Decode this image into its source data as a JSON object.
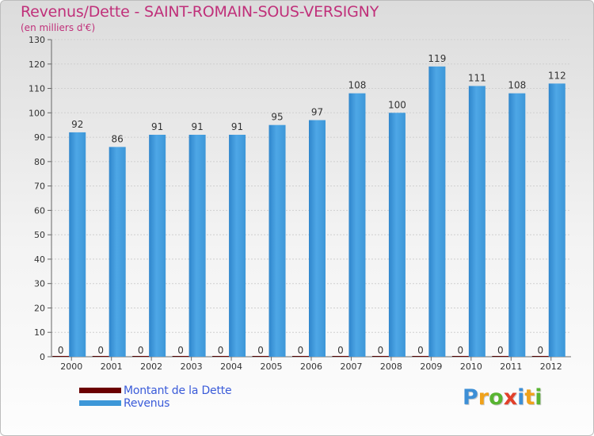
{
  "chart_data": {
    "type": "bar",
    "title": "Revenus/Dette - SAINT-ROMAIN-SOUS-VERSIGNY",
    "subtitle": "(en milliers d'€)",
    "categories": [
      "2000",
      "2001",
      "2002",
      "2003",
      "2004",
      "2005",
      "2006",
      "2007",
      "2008",
      "2009",
      "2010",
      "2011",
      "2012"
    ],
    "series": [
      {
        "name": "Montant de la Dette",
        "color": "#6b0000",
        "values": [
          0,
          0,
          0,
          0,
          0,
          0,
          0,
          0,
          0,
          0,
          0,
          0,
          0
        ]
      },
      {
        "name": "Revenus",
        "color": "#3d97d8",
        "values": [
          92,
          86,
          91,
          91,
          91,
          95,
          97,
          108,
          100,
          119,
          111,
          108,
          112
        ]
      }
    ],
    "ylim": [
      0,
      130
    ],
    "yticks": [
      0,
      10,
      20,
      30,
      40,
      50,
      60,
      70,
      80,
      90,
      100,
      110,
      120,
      130
    ],
    "grid": true,
    "legend_position": "bottom-left"
  },
  "branding": {
    "logo_letters": [
      {
        "char": "P",
        "color": "#3d8fd6"
      },
      {
        "char": "r",
        "color": "#f0a21a"
      },
      {
        "char": "o",
        "color": "#58b431"
      },
      {
        "char": "x",
        "color": "#e2402a"
      },
      {
        "char": "i",
        "color": "#3d8fd6"
      },
      {
        "char": "t",
        "color": "#f0a21a"
      },
      {
        "char": "i",
        "color": "#58b431"
      }
    ]
  }
}
